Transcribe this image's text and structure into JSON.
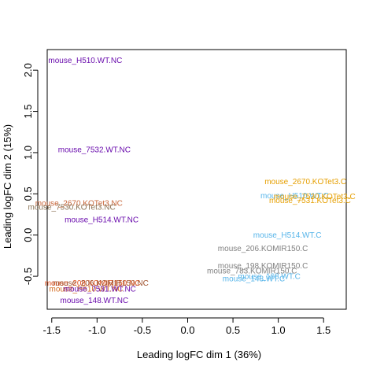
{
  "chart_data": {
    "type": "scatter",
    "title": "",
    "xlabel": "Leading logFC dim 1 (36%)",
    "ylabel": "Leading logFC dim 2 (15%)",
    "xlim": [
      -1.55,
      1.75
    ],
    "ylim": [
      -0.9,
      2.25
    ],
    "x_ticks": [
      "-1.5",
      "-1.0",
      "-0.5",
      "0.0",
      "0.5",
      "1.0",
      "1.5"
    ],
    "y_ticks": [
      "-0.5",
      "0.0",
      "0.5",
      "1.0",
      "1.5",
      "2.0"
    ],
    "grid": false,
    "points": [
      {
        "label": "mouse_H510.WT.NC",
        "x": -1.13,
        "y": 2.12,
        "color": "#6a0dad"
      },
      {
        "label": "mouse_7532.WT.NC",
        "x": -1.03,
        "y": 1.04,
        "color": "#6a0dad"
      },
      {
        "label": "mouse_2670.KOTet3.NC",
        "x": -1.2,
        "y": 0.39,
        "color": "#c8663a"
      },
      {
        "label": "mouse_7530.KOTet3.NC",
        "x": -1.28,
        "y": 0.34,
        "color": "#8b7355"
      },
      {
        "label": "mouse_H514.WT.NC",
        "x": -0.95,
        "y": 0.19,
        "color": "#6a0dad"
      },
      {
        "label": "mouse_208.KOMIR150.NC",
        "x": -1.05,
        "y": -0.58,
        "color": "#e0501e"
      },
      {
        "label": "mouse_206.KOMIR150.NC",
        "x": -0.96,
        "y": -0.58,
        "color": "#a0522d"
      },
      {
        "label": "mouse_H510.WT.NC",
        "x": -1.12,
        "y": -0.65,
        "color": "#d2691e"
      },
      {
        "label": "mouse_7531.WT.NC",
        "x": -0.97,
        "y": -0.65,
        "color": "#6a0dad"
      },
      {
        "label": "mouse_148.WT.NC",
        "x": -1.03,
        "y": -0.79,
        "color": "#6a0dad"
      },
      {
        "label": "mouse_2670.KOTet3.C",
        "x": 1.3,
        "y": 0.65,
        "color": "#e69f00"
      },
      {
        "label": "mouse_H510.WT.C",
        "x": 1.18,
        "y": 0.48,
        "color": "#56b4e9"
      },
      {
        "label": "mouse_7530.KOTet3.C",
        "x": 1.4,
        "y": 0.47,
        "color": "#e69f00"
      },
      {
        "label": "mouse_7531.KOTet3.C",
        "x": 1.35,
        "y": 0.42,
        "color": "#e69f00"
      },
      {
        "label": "mouse_H514.WT.C",
        "x": 1.1,
        "y": 0.0,
        "color": "#56b4e9"
      },
      {
        "label": "mouse_206.KOMIR150.C",
        "x": 0.83,
        "y": -0.16,
        "color": "#808080"
      },
      {
        "label": "mouse_198.KOMIR150.C",
        "x": 0.83,
        "y": -0.37,
        "color": "#808080"
      },
      {
        "label": "mouse_783.KOMIR150.C",
        "x": 0.71,
        "y": -0.43,
        "color": "#808080"
      },
      {
        "label": "mouse_168.WT.C",
        "x": 0.9,
        "y": -0.5,
        "color": "#56b4e9"
      },
      {
        "label": "mouse_148.WT.C",
        "x": 0.73,
        "y": -0.53,
        "color": "#56b4e9"
      }
    ]
  }
}
